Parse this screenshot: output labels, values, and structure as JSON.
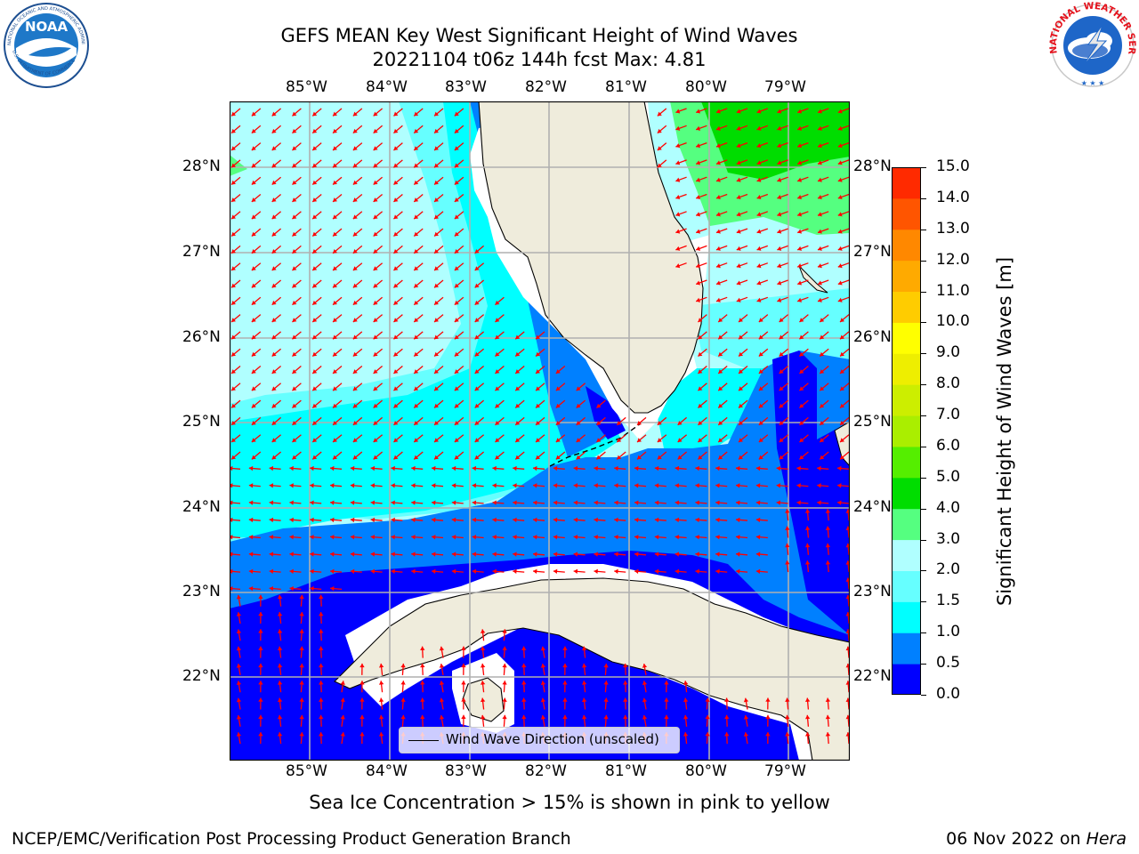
{
  "title": {
    "line1": "GEFS MEAN Key West Significant Height of Wind Waves",
    "line2": "20221104 t06z 144h fcst   Max: 4.81"
  },
  "logos": {
    "noaa": {
      "label": "NOAA",
      "ring_text": "NATIONAL OCEANIC AND ATMOSPHERIC ADMINISTRATION",
      "ring_text_bottom": "U.S. DEPARTMENT OF COMMERCE"
    },
    "nws": {
      "ring_text": "NATIONAL WEATHER SERVICE"
    }
  },
  "map": {
    "lon_labels": [
      "85°W",
      "84°W",
      "83°W",
      "82°W",
      "81°W",
      "80°W",
      "79°W"
    ],
    "lat_labels": [
      "28°N",
      "27°N",
      "26°N",
      "25°N",
      "24°N",
      "23°N",
      "22°N"
    ],
    "land_color": "#efecdc",
    "arrow_color": "#ff0000",
    "grid_color": "#b0b0b0",
    "legend_label": "Wind Wave Direction (unscaled)"
  },
  "colorbar": {
    "ticks": [
      "0.0",
      "0.5",
      "1.0",
      "1.5",
      "2.0",
      "3.0",
      "4.0",
      "5.0",
      "6.0",
      "7.0",
      "8.0",
      "9.0",
      "10.0",
      "11.0",
      "12.0",
      "13.0",
      "14.0",
      "15.0"
    ],
    "colors": [
      "#0000ff",
      "#0080ff",
      "#00ffff",
      "#66ffff",
      "#b0ffff",
      "#55ff80",
      "#00dd00",
      "#55ee00",
      "#aaee00",
      "#ccee00",
      "#eeee00",
      "#ffff00",
      "#ffcc00",
      "#ffaa00",
      "#ff8800",
      "#ff5500",
      "#ff2a00"
    ],
    "label": "Significant Height of Wind Waves [m]"
  },
  "note": "Sea Ice Concentration > 15% is shown in pink to yellow",
  "footer": {
    "left": "NCEP/EMC/Verification Post Processing Product Generation Branch",
    "right_date": "06 Nov 2022 on ",
    "right_host": "Hera"
  }
}
